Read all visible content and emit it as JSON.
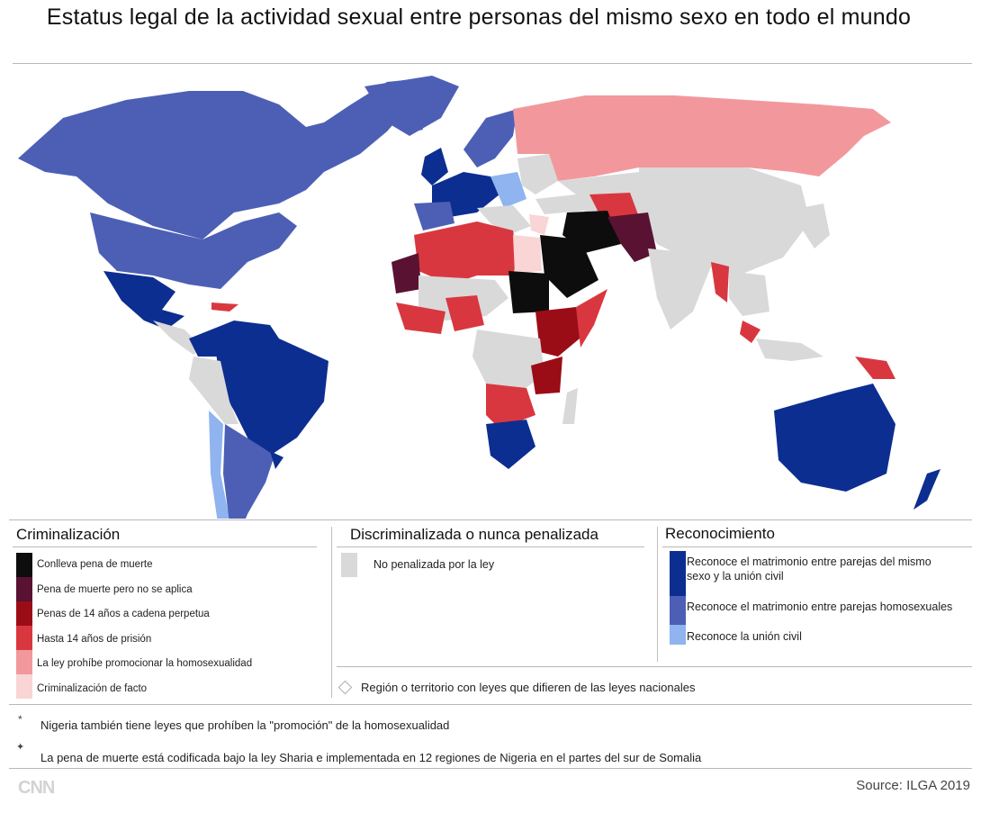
{
  "title": "Estatus legal de la actividad sexual entre personas del mismo sexo en todo el mundo",
  "colors": {
    "death": "#0d0d0d",
    "death_not_applied": "#5a1233",
    "life": "#9b0d16",
    "up_to_14": "#d9373f",
    "propaganda": "#f2989d",
    "de_facto": "#f9d5d6",
    "legal": "#d9d9d9",
    "marriage_civil": "#0c2e91",
    "marriage": "#4d5fb5",
    "civil_union": "#8fb4ef"
  },
  "legend": {
    "criminalization": {
      "title": "Criminalización",
      "items": [
        {
          "label": "Conlleva pena de muerte",
          "color": "#0d0d0d"
        },
        {
          "label": "Pena de muerte pero no se aplica",
          "color": "#5a1233"
        },
        {
          "label": "Penas de 14 años a cadena perpetua",
          "color": "#9b0d16"
        },
        {
          "label": "Hasta 14 años de prisión",
          "color": "#d9373f"
        },
        {
          "label": "La ley prohíbe promocionar la homosexualidad",
          "color": "#f2989d"
        },
        {
          "label": "Criminalización de facto",
          "color": "#f9d5d6"
        }
      ]
    },
    "decriminalized": {
      "title": "Discriminalizada o nunca penalizada",
      "items": [
        {
          "label": "No penalizada por la ley",
          "color": "#d9d9d9"
        }
      ]
    },
    "recognition": {
      "title": "Reconocimiento",
      "items": [
        {
          "label": "Reconoce el matrimonio entre parejas del mismo sexo y la unión civil",
          "color": "#0c2e91"
        },
        {
          "label": "Reconoce el matrimonio entre parejas homosexuales",
          "color": "#4d5fb5"
        },
        {
          "label": "Reconoce la unión civil",
          "color": "#8fb4ef"
        }
      ]
    },
    "region_note": "Región o territorio con leyes que difieren de las leyes nacionales"
  },
  "notes": [
    {
      "symbol": "*",
      "text": "Nigeria también tiene leyes que prohíben la \"promoción\" de la homosexualidad"
    },
    {
      "symbol": "✦",
      "text": "La pena de muerte está codificada bajo la ley Sharia e implementada en 12 regiones de Nigeria en el partes del sur de Somalia"
    }
  ],
  "footer": {
    "logo": "CNN",
    "source": "Source: ILGA 2019"
  }
}
